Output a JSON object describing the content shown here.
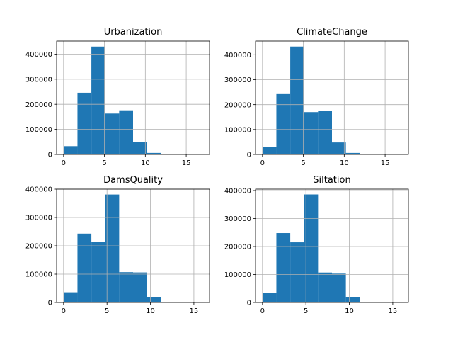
{
  "chart_data": [
    {
      "type": "histogram",
      "title": "Urbanization",
      "bins": [
        [
          0,
          1.7
        ],
        [
          1.7,
          3.4
        ],
        [
          3.4,
          5.1
        ],
        [
          5.1,
          6.8
        ],
        [
          6.8,
          8.5
        ],
        [
          8.5,
          10.2
        ],
        [
          10.2,
          11.9
        ],
        [
          11.9,
          13.6
        ],
        [
          13.6,
          15.3
        ],
        [
          15.3,
          17.0
        ]
      ],
      "values": [
        33000,
        246000,
        430000,
        163000,
        176000,
        50000,
        6000,
        2000,
        300,
        100
      ],
      "xlim": [
        -0.85,
        17.85
      ],
      "ylim": [
        0,
        452000
      ],
      "xticks": [
        0,
        5,
        10,
        15
      ],
      "yticks": [
        0,
        100000,
        200000,
        300000,
        400000
      ],
      "grid": true
    },
    {
      "type": "histogram",
      "title": "ClimateChange",
      "bins": [
        [
          0,
          1.7
        ],
        [
          1.7,
          3.4
        ],
        [
          3.4,
          5.1
        ],
        [
          5.1,
          6.8
        ],
        [
          6.8,
          8.5
        ],
        [
          8.5,
          10.2
        ],
        [
          10.2,
          11.9
        ],
        [
          11.9,
          13.6
        ],
        [
          13.6,
          15.3
        ],
        [
          15.3,
          17.0
        ]
      ],
      "values": [
        30000,
        245000,
        433000,
        170000,
        176000,
        48000,
        6000,
        2000,
        300,
        100
      ],
      "xlim": [
        -0.85,
        17.85
      ],
      "ylim": [
        0,
        455000
      ],
      "xticks": [
        0,
        5,
        10,
        15
      ],
      "yticks": [
        0,
        100000,
        200000,
        300000,
        400000
      ],
      "grid": true
    },
    {
      "type": "histogram",
      "title": "DamsQuality",
      "bins": [
        [
          0,
          1.6
        ],
        [
          1.6,
          3.2
        ],
        [
          3.2,
          4.8
        ],
        [
          4.8,
          6.4
        ],
        [
          6.4,
          8.0
        ],
        [
          8.0,
          9.6
        ],
        [
          9.6,
          11.2
        ],
        [
          11.2,
          12.8
        ],
        [
          12.8,
          14.4
        ],
        [
          14.4,
          16.0
        ]
      ],
      "values": [
        36000,
        243000,
        215000,
        381000,
        107000,
        106000,
        20000,
        2000,
        300,
        100
      ],
      "xlim": [
        -0.8,
        16.8
      ],
      "ylim": [
        0,
        400000
      ],
      "xticks": [
        0,
        5,
        10,
        15
      ],
      "yticks": [
        0,
        100000,
        200000,
        300000,
        400000
      ],
      "grid": true
    },
    {
      "type": "histogram",
      "title": "Siltation",
      "bins": [
        [
          0,
          1.6
        ],
        [
          1.6,
          3.2
        ],
        [
          3.2,
          4.8
        ],
        [
          4.8,
          6.4
        ],
        [
          6.4,
          8.0
        ],
        [
          8.0,
          9.6
        ],
        [
          9.6,
          11.2
        ],
        [
          11.2,
          12.8
        ],
        [
          12.8,
          14.4
        ],
        [
          14.4,
          16.0
        ]
      ],
      "values": [
        34000,
        248000,
        215000,
        386000,
        107000,
        103000,
        20000,
        2000,
        300,
        100
      ],
      "xlim": [
        -0.8,
        16.8
      ],
      "ylim": [
        0,
        405000
      ],
      "xticks": [
        0,
        5,
        10,
        15
      ],
      "yticks": [
        0,
        100000,
        200000,
        300000,
        400000
      ],
      "grid": true
    }
  ],
  "colors": {
    "bar": "#1f77b4",
    "grid": "#b0b0b0"
  }
}
